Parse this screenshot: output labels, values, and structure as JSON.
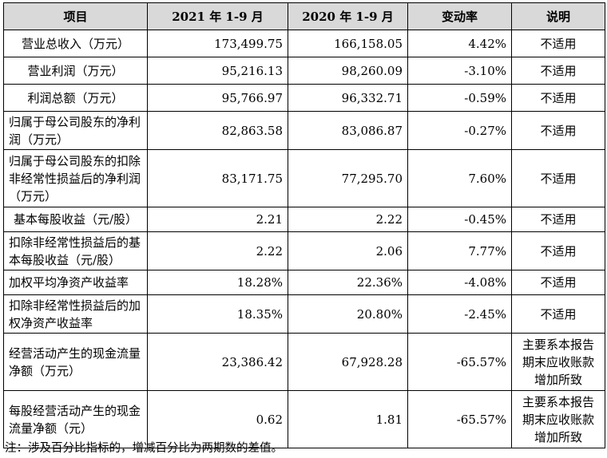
{
  "headers": [
    "项目",
    "2021 年 1-9 月",
    "2020 年 1-9 月",
    "变动率",
    "说明"
  ],
  "rows": [
    {
      "item": "营业总收入（万元）",
      "v2021": "173,499.75",
      "v2020": "166,158.05",
      "change": "4.42%",
      "note": "不适用"
    },
    {
      "item": "营业利润（万元）",
      "v2021": "95,216.13",
      "v2020": "98,260.09",
      "change": "-3.10%",
      "note": "不适用"
    },
    {
      "item": "利润总额（万元）",
      "v2021": "95,766.97",
      "v2020": "96,332.71",
      "change": "-0.59%",
      "note": "不适用"
    },
    {
      "item": "归属于母公司股东的净利润（万元）",
      "v2021": "82,863.58",
      "v2020": "83,086.87",
      "change": "-0.27%",
      "note": "不适用"
    },
    {
      "item": "归属于母公司股东的扣除非经常性损益后的净利润（万元）",
      "v2021": "83,171.75",
      "v2020": "77,295.70",
      "change": "7.60%",
      "note": "不适用"
    },
    {
      "item": "基本每股收益（元/股）",
      "v2021": "2.21",
      "v2020": "2.22",
      "change": "-0.45%",
      "note": "不适用"
    },
    {
      "item": "扣除非经常性损益后的基本每股收益（元/股）",
      "v2021": "2.22",
      "v2020": "2.06",
      "change": "7.77%",
      "note": "不适用"
    },
    {
      "item": "加权平均净资产收益率",
      "v2021": "18.28%",
      "v2020": "22.36%",
      "change": "-4.08%",
      "note": "不适用"
    },
    {
      "item": "扣除非经常性损益后的加权净资产收益率",
      "v2021": "18.35%",
      "v2020": "20.80%",
      "change": "-2.45%",
      "note": "不适用"
    },
    {
      "item": "经营活动产生的现金流量净额（万元）",
      "v2021": "23,386.42",
      "v2020": "67,928.28",
      "change": "-65.57%",
      "note": "主要系本报告期末应收账款增加所致"
    },
    {
      "item": "每股经营活动产生的现金流量净额（元）",
      "v2021": "0.62",
      "v2020": "1.81",
      "change": "-65.57%",
      "note": "主要系本报告期末应收账款增加所致"
    }
  ],
  "footnote": "注：涉及百分比指标的，增减百分比为两期数的差值。"
}
